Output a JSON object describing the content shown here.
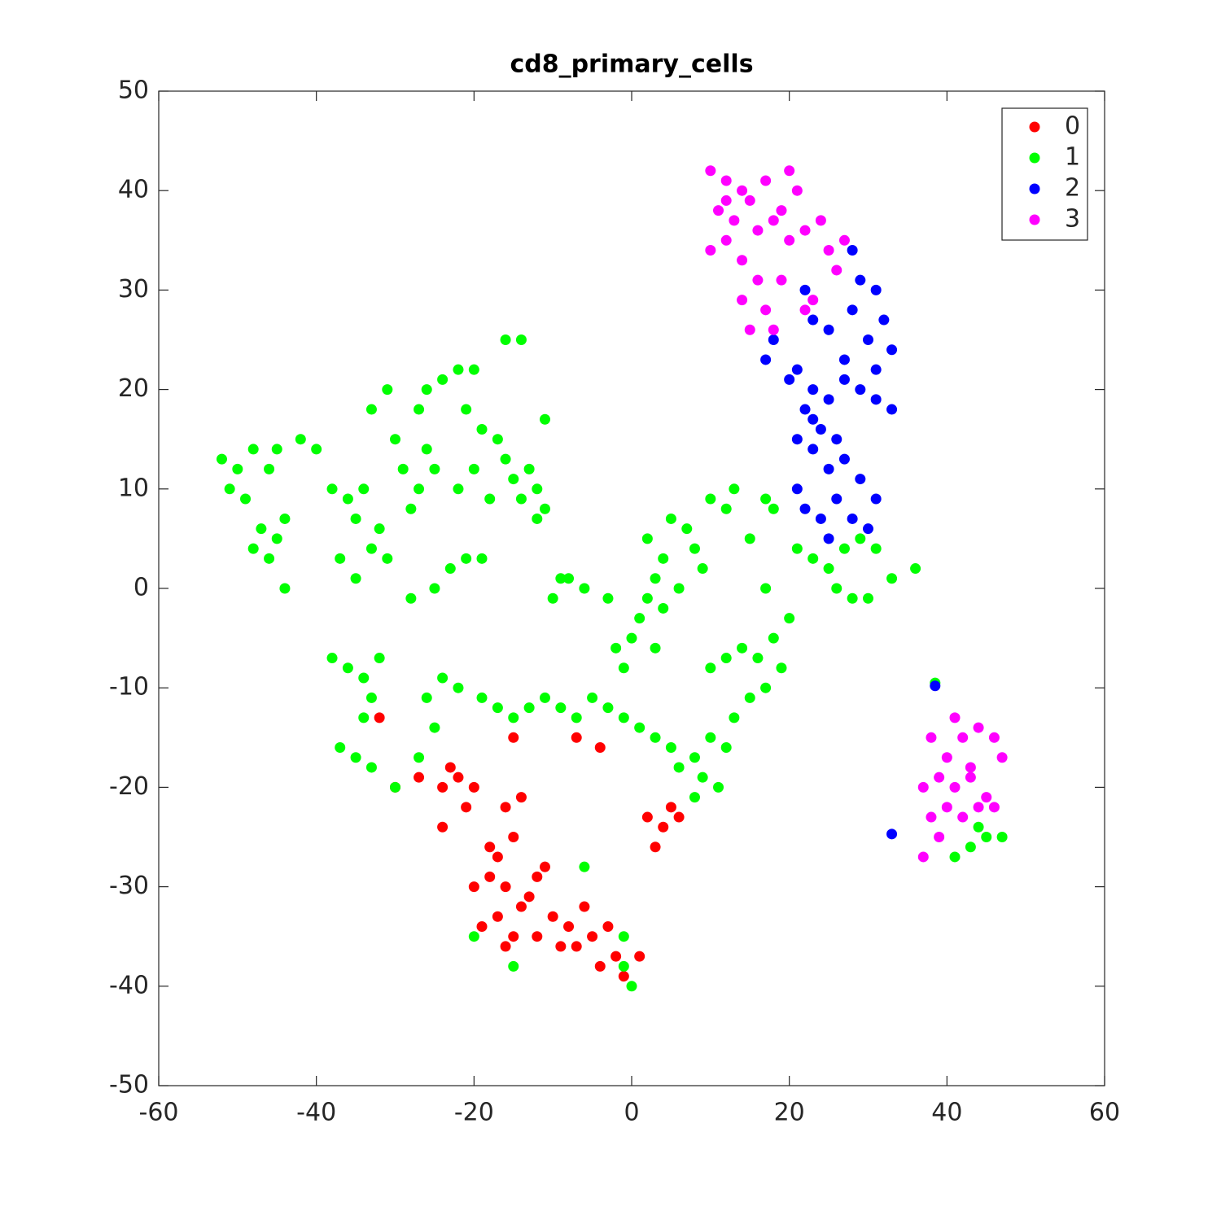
{
  "chart_data": {
    "type": "scatter",
    "title": "cd8_primary_cells",
    "xlim": [
      -60,
      60
    ],
    "xticks": [
      -60,
      -40,
      -20,
      0,
      20,
      40,
      60
    ],
    "ylim": [
      -50,
      50
    ],
    "yticks": [
      -50,
      -40,
      -30,
      -20,
      -10,
      0,
      10,
      20,
      30,
      40,
      50
    ],
    "legend": "top-right",
    "series": [
      {
        "name": "0",
        "color": "#ff0000",
        "x": [
          -16,
          -18,
          -14,
          -17,
          -15,
          -19,
          -13,
          -12,
          -20,
          -16,
          -10,
          -8,
          -6,
          -9,
          -5,
          -4,
          -2,
          -1,
          -3,
          -7,
          -22,
          -24,
          -21,
          -23,
          -20,
          -16,
          -15,
          -17,
          -14,
          -18,
          2,
          4,
          5,
          3,
          6,
          -27,
          -30,
          -24,
          -15,
          -7,
          -4,
          -32,
          -11,
          -12,
          1
        ],
        "values": [
          -30,
          -29,
          -32,
          -33,
          -35,
          -34,
          -31,
          -35,
          -30,
          -36,
          -33,
          -34,
          -32,
          -36,
          -35,
          -38,
          -37,
          -39,
          -34,
          -36,
          -19,
          -20,
          -22,
          -18,
          -20,
          -22,
          -25,
          -27,
          -21,
          -26,
          -23,
          -24,
          -22,
          -26,
          -23,
          -19,
          -20,
          -24,
          -15,
          -15,
          -16,
          -13,
          -28,
          -29,
          -37
        ]
      },
      {
        "name": "1",
        "color": "#00ff00",
        "x": [
          -52,
          -50,
          -48,
          -51,
          -49,
          -47,
          -45,
          -46,
          -44,
          -48,
          -45,
          -46,
          -44,
          -42,
          -40,
          -38,
          -36,
          -35,
          -37,
          -35,
          -33,
          -32,
          -31,
          -34,
          -33,
          -31,
          -30,
          -29,
          -27,
          -26,
          -24,
          -22,
          -20,
          -21,
          -19,
          -17,
          -16,
          -15,
          -13,
          -12,
          -11,
          -12,
          -14,
          -18,
          -20,
          -22,
          -25,
          -27,
          -28,
          -26,
          -23,
          -21,
          -25,
          -28,
          -16,
          -14,
          -11,
          -19,
          -38,
          -36,
          -34,
          -32,
          -33,
          -34,
          -37,
          -35,
          -33,
          -30,
          -27,
          -25,
          -26,
          -24,
          -22,
          -19,
          -17,
          -15,
          -13,
          -11,
          -9,
          -7,
          -5,
          -3,
          -1,
          1,
          3,
          5,
          0,
          1,
          2,
          3,
          4,
          2,
          5,
          7,
          8,
          9,
          6,
          4,
          -2,
          -1,
          3,
          -3,
          -6,
          -9,
          -10,
          -8,
          10,
          12,
          14,
          16,
          18,
          19,
          17,
          15,
          13,
          20,
          10,
          8,
          9,
          11,
          12,
          8,
          6,
          21,
          23,
          25,
          27,
          29,
          31,
          26,
          28,
          30,
          33,
          36,
          13,
          10,
          12,
          17,
          18,
          15,
          17,
          -1,
          -1,
          0,
          -20,
          -15,
          -6,
          41,
          43,
          45,
          44,
          47,
          38.5
        ],
        "values": [
          13,
          12,
          14,
          10,
          9,
          6,
          5,
          3,
          7,
          4,
          14,
          12,
          0,
          15,
          14,
          10,
          9,
          7,
          3,
          1,
          4,
          6,
          3,
          10,
          18,
          20,
          15,
          12,
          18,
          20,
          21,
          22,
          22,
          18,
          16,
          15,
          13,
          11,
          12,
          10,
          8,
          7,
          9,
          9,
          12,
          10,
          12,
          10,
          8,
          14,
          2,
          3,
          0,
          -1,
          25,
          25,
          17,
          3,
          -7,
          -8,
          -9,
          -7,
          -11,
          -13,
          -16,
          -17,
          -18,
          -20,
          -17,
          -14,
          -11,
          -9,
          -10,
          -11,
          -12,
          -13,
          -12,
          -11,
          -12,
          -13,
          -11,
          -12,
          -13,
          -14,
          -15,
          -16,
          -5,
          -3,
          -1,
          1,
          3,
          5,
          7,
          6,
          4,
          2,
          0,
          -2,
          -6,
          -8,
          -6,
          -1,
          0,
          1,
          -1,
          1,
          -8,
          -7,
          -6,
          -7,
          -5,
          -8,
          -10,
          -11,
          -13,
          -3,
          -15,
          -17,
          -19,
          -20,
          -16,
          -21,
          -18,
          4,
          3,
          2,
          4,
          5,
          4,
          0,
          -1,
          -1,
          1,
          2,
          10,
          9,
          8,
          9,
          8,
          5,
          0,
          -35,
          -38,
          -40,
          -35,
          -38,
          -28,
          -27,
          -26,
          -25,
          -24,
          -25,
          -9.5
        ]
      },
      {
        "name": "2",
        "color": "#0000ff",
        "x": [
          28,
          29,
          31,
          32,
          30,
          33,
          31,
          27,
          25,
          23,
          22,
          18,
          17,
          21,
          23,
          25,
          27,
          29,
          31,
          33,
          20,
          22,
          24,
          26,
          23,
          21,
          25,
          27,
          29,
          31,
          26,
          24,
          28,
          30,
          25,
          21,
          22,
          28,
          23,
          38.5,
          33
        ],
        "values": [
          34,
          31,
          30,
          27,
          25,
          24,
          22,
          23,
          26,
          27,
          30,
          25,
          23,
          22,
          20,
          19,
          21,
          20,
          19,
          18,
          21,
          18,
          16,
          15,
          14,
          15,
          12,
          13,
          11,
          9,
          9,
          7,
          7,
          6,
          5,
          10,
          8,
          28,
          17,
          -9.8,
          -24.7
        ]
      },
      {
        "name": "3",
        "color": "#ff00ff",
        "x": [
          10,
          12,
          14,
          11,
          13,
          15,
          17,
          16,
          12,
          14,
          18,
          20,
          19,
          22,
          24,
          21,
          25,
          27,
          26,
          16,
          19,
          17,
          18,
          15,
          22,
          23,
          10,
          14,
          12,
          20,
          38,
          40,
          42,
          44,
          46,
          47,
          39,
          41,
          43,
          45,
          37,
          38,
          40,
          42,
          44,
          46,
          39,
          37,
          41,
          43
        ],
        "values": [
          42,
          41,
          40,
          38,
          37,
          39,
          41,
          36,
          35,
          33,
          37,
          35,
          38,
          36,
          37,
          40,
          34,
          35,
          32,
          31,
          31,
          28,
          26,
          26,
          28,
          29,
          34,
          29,
          39,
          42,
          -15,
          -17,
          -15,
          -14,
          -15,
          -17,
          -19,
          -20,
          -19,
          -21,
          -20,
          -23,
          -22,
          -23,
          -22,
          -22,
          -25,
          -27,
          -13,
          -18
        ]
      }
    ]
  }
}
